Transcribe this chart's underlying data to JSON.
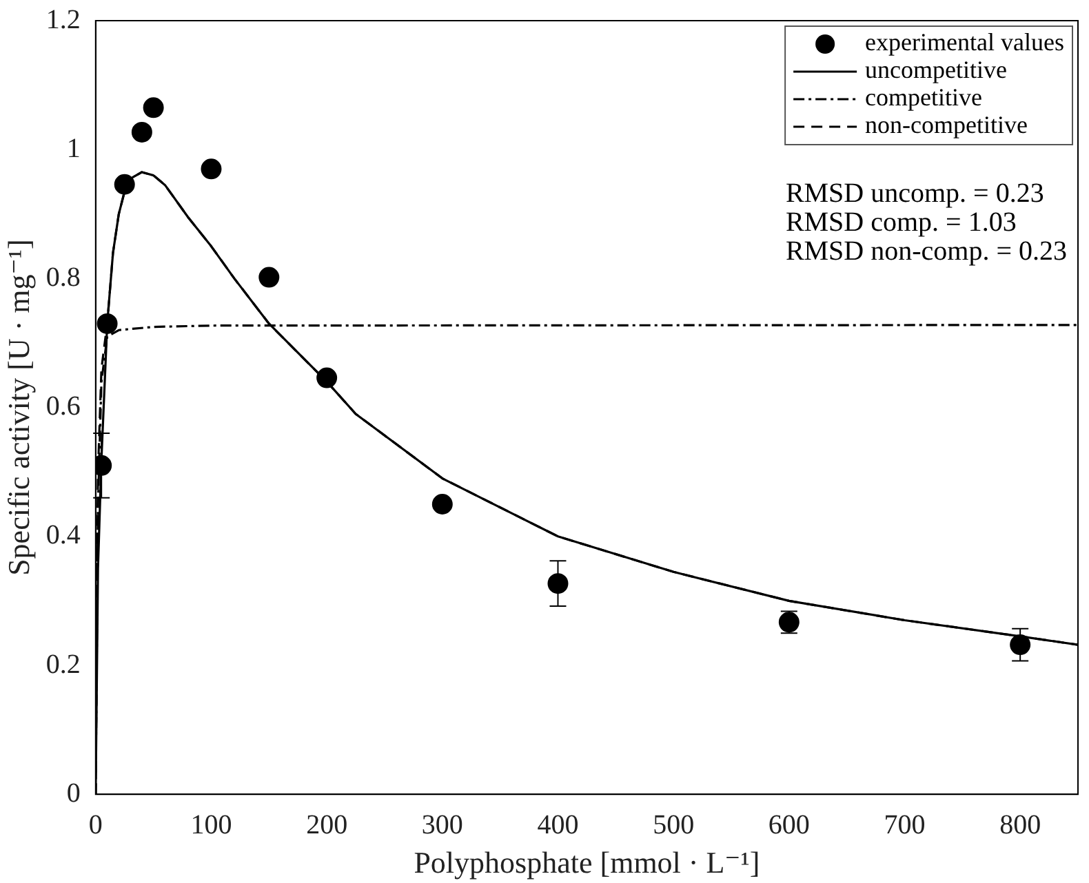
{
  "chart_data": {
    "type": "scatter",
    "xlabel": "Polyphosphate [mmol · L⁻¹]",
    "ylabel": "Specific activity [U · mg⁻¹]",
    "xlim": [
      0,
      850
    ],
    "xticks": [
      0,
      100,
      200,
      300,
      400,
      500,
      600,
      700,
      800
    ],
    "ylim": [
      0,
      1.2
    ],
    "yticks": [
      0,
      0.2,
      0.4,
      0.6,
      0.8,
      1,
      1.2
    ],
    "grid": false,
    "legend": "top right",
    "annotations": [
      "RMSD uncomp. = 0.23",
      "RMSD comp. = 1.03",
      "RMSD non-comp. = 0.23"
    ],
    "series": [
      {
        "name": "experimental values",
        "marker": "circle",
        "color": "#000000",
        "x": [
          5,
          10,
          25,
          40,
          50,
          100,
          150,
          200,
          300,
          400,
          600,
          800
        ],
        "values": [
          0.51,
          0.73,
          0.946,
          1.027,
          1.065,
          0.97,
          0.802,
          0.646,
          0.45,
          0.327,
          0.267,
          0.232
        ],
        "errors": [
          0.05,
          null,
          null,
          null,
          null,
          null,
          null,
          null,
          null,
          0.035,
          0.017,
          0.025
        ]
      },
      {
        "name": "uncompetitive",
        "type": "line",
        "line_style": "solid",
        "marker": "none",
        "color": "#000000",
        "x": [
          0,
          2,
          5,
          10,
          15,
          20,
          25,
          30,
          40,
          50,
          60,
          80,
          100,
          120,
          150,
          200,
          225,
          300,
          400,
          500,
          600,
          700,
          800,
          850
        ],
        "values": [
          0,
          0.35,
          0.52,
          0.73,
          0.84,
          0.9,
          0.935,
          0.955,
          0.965,
          0.96,
          0.945,
          0.895,
          0.85,
          0.8,
          0.73,
          0.64,
          0.59,
          0.49,
          0.4,
          0.345,
          0.3,
          0.27,
          0.245,
          0.232
        ]
      },
      {
        "name": "competitive",
        "type": "line",
        "line_style": "dashdot",
        "marker": "none",
        "color": "#000000",
        "x": [
          0,
          2,
          5,
          10,
          20,
          50,
          100,
          850
        ],
        "values": [
          0,
          0.45,
          0.64,
          0.71,
          0.72,
          0.725,
          0.727,
          0.728
        ]
      },
      {
        "name": "non-competitive",
        "type": "line",
        "line_style": "dashed",
        "marker": "none",
        "color": "#000000",
        "x": [
          0,
          2,
          5,
          10,
          15,
          20,
          25,
          30,
          40,
          50,
          60,
          80,
          100,
          120,
          150,
          200,
          225,
          300,
          400,
          500,
          600,
          700,
          800,
          850
        ],
        "values": [
          0,
          0.5,
          0.66,
          0.73,
          0.84,
          0.9,
          0.935,
          0.955,
          0.965,
          0.96,
          0.945,
          0.895,
          0.85,
          0.8,
          0.73,
          0.64,
          0.59,
          0.49,
          0.4,
          0.345,
          0.3,
          0.27,
          0.245,
          0.232
        ]
      }
    ]
  }
}
